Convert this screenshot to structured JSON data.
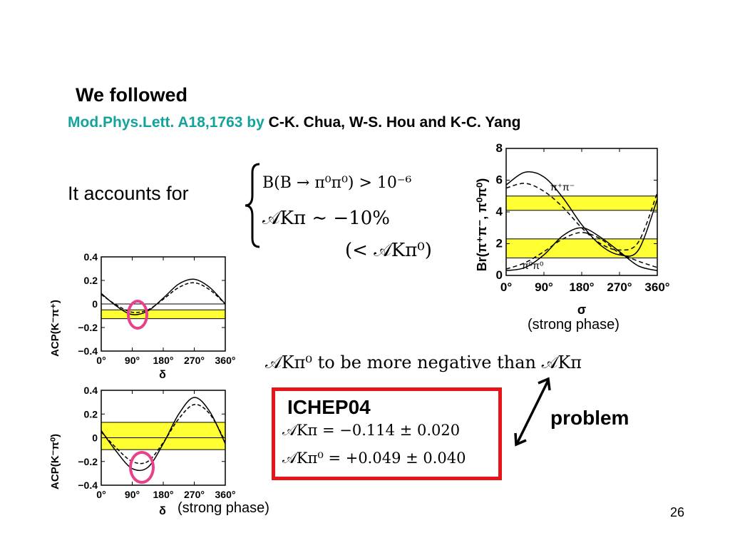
{
  "slide": {
    "title": "We followed",
    "reference_journal": "Mod.Phys.Lett. A18,1763 by",
    "reference_authors": "C-K. Chua, W-S. Hou and K-C. Yang",
    "accounts_text": "It accounts for",
    "eq_branching": "B(B → π⁰π⁰) > 10⁻⁶",
    "eq_asym_approx": "𝒜Kπ ∼ −10%",
    "eq_asym_less": "(< 𝒜Kπ⁰)",
    "more_negative_text": "𝒜Kπ⁰ to be more negative than 𝒜Kπ",
    "ichep_title": "ICHEP04",
    "ichep_line1": "𝒜Kπ = −0.114 ± 0.020",
    "ichep_line2": "𝒜Kπ⁰ = +0.049 ± 0.040",
    "problem_label": "problem",
    "strong_phase_label_1": "(strong phase)",
    "strong_phase_label_2": "(strong phase)",
    "page_number": "26",
    "colors": {
      "teal": "#13a39b",
      "band": "#ffff33",
      "box_border": "#e8141a",
      "highlight_circle": "#e8418a"
    }
  },
  "chart_data": [
    {
      "type": "line",
      "ylabel": "Br(π⁺π⁻, π⁰π⁰)",
      "xlabel": "σ",
      "xlim": [
        0,
        360
      ],
      "ylim": [
        0,
        8
      ],
      "x_ticks": [
        "0°",
        "90°",
        "180°",
        "270°",
        "360°"
      ],
      "y_ticks": [
        "0",
        "2",
        "4",
        "6",
        "8"
      ],
      "annotations": [
        "π⁺π⁻",
        "π⁰π⁰"
      ],
      "bands": [
        {
          "ymin": 4.1,
          "ymax": 5.0
        },
        {
          "ymin": 1.1,
          "ymax": 2.3
        }
      ],
      "series": [
        {
          "x": [
            0,
            45,
            90,
            135,
            180,
            225,
            270,
            315,
            360
          ],
          "values": [
            5.7,
            6.5,
            6.2,
            4.9,
            3.2,
            1.9,
            1.3,
            1.6,
            4.8
          ]
        },
        {
          "x": [
            0,
            45,
            90,
            135,
            180,
            225,
            270,
            315,
            360
          ],
          "values": [
            5.5,
            5.8,
            5.3,
            4.3,
            3.0,
            2.0,
            1.6,
            2.1,
            5.2
          ]
        },
        {
          "x": [
            0,
            45,
            90,
            135,
            180,
            225,
            270,
            315,
            360
          ],
          "values": [
            0.3,
            0.5,
            1.3,
            2.5,
            3.0,
            2.4,
            1.5,
            0.6,
            0.3
          ]
        },
        {
          "x": [
            0,
            45,
            90,
            135,
            180,
            225,
            270,
            315,
            360
          ],
          "values": [
            0.4,
            0.8,
            1.5,
            2.3,
            2.7,
            2.3,
            1.4,
            0.9,
            0.5
          ]
        }
      ]
    },
    {
      "type": "line",
      "ylabel": "ACP(K⁻π⁺)",
      "xlabel": "δ",
      "xlim": [
        0,
        360
      ],
      "ylim": [
        -0.4,
        0.4
      ],
      "x_ticks": [
        "0°",
        "90°",
        "180°",
        "270°",
        "360°"
      ],
      "y_ticks": [
        "0.4",
        "0.2",
        "0",
        "−0.2",
        "−0.4"
      ],
      "bands": [
        {
          "ymin": -0.125,
          "ymax": -0.05
        }
      ],
      "series": [
        {
          "x": [
            0,
            45,
            90,
            135,
            180,
            225,
            270,
            315,
            360
          ],
          "values": [
            0.09,
            -0.02,
            -0.09,
            -0.06,
            0.05,
            0.17,
            0.21,
            0.14,
            0.0
          ]
        },
        {
          "x": [
            0,
            45,
            90,
            135,
            180,
            225,
            270,
            315,
            360
          ],
          "values": [
            0.08,
            -0.01,
            -0.07,
            -0.05,
            0.04,
            0.14,
            0.18,
            0.12,
            0.0
          ]
        }
      ]
    },
    {
      "type": "line",
      "ylabel": "ACP(K⁻π⁰)",
      "xlabel": "δ",
      "xlim": [
        0,
        360
      ],
      "ylim": [
        -0.4,
        0.4
      ],
      "x_ticks": [
        "0°",
        "90°",
        "180°",
        "270°",
        "360°"
      ],
      "y_ticks": [
        "0.4",
        "0.2",
        "0",
        "−0.2",
        "−0.4"
      ],
      "bands": [
        {
          "ymin": -0.1,
          "ymax": 0.13
        }
      ],
      "series": [
        {
          "x": [
            0,
            45,
            90,
            135,
            180,
            225,
            270,
            315,
            360
          ],
          "values": [
            0.06,
            -0.12,
            -0.26,
            -0.25,
            -0.05,
            0.2,
            0.34,
            0.22,
            -0.05
          ]
        },
        {
          "x": [
            0,
            45,
            90,
            135,
            180,
            225,
            270,
            315,
            360
          ],
          "values": [
            0.05,
            -0.09,
            -0.2,
            -0.2,
            -0.04,
            0.16,
            0.28,
            0.2,
            -0.03
          ]
        }
      ]
    }
  ]
}
